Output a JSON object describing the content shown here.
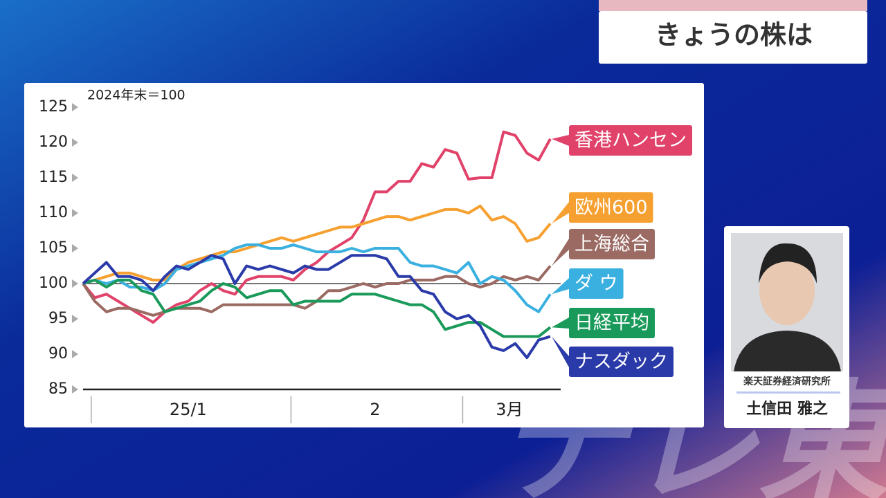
{
  "header": {
    "title": "きょうの株は"
  },
  "watermark": "テレ東",
  "commentator": {
    "organization": "楽天証券経済研究所",
    "name": "土信田 雅之"
  },
  "chart_data": {
    "type": "line",
    "subtitle": "2024年末＝100",
    "x": [
      0,
      1,
      2,
      3,
      4,
      5,
      6,
      7,
      8,
      9,
      10,
      11,
      12,
      13,
      14,
      15,
      16,
      17,
      18,
      19,
      20,
      21,
      22,
      23,
      24,
      25,
      26,
      27,
      28,
      29,
      30,
      31,
      32,
      33,
      34,
      35,
      36,
      37,
      38,
      39,
      40
    ],
    "xlim": [
      0,
      40
    ],
    "xticks": [
      {
        "value": 9,
        "label": "25/1"
      },
      {
        "value": 25,
        "label": "2"
      },
      {
        "value": 36.5,
        "label": "3月"
      }
    ],
    "x_dividers": [
      0.7,
      17.8,
      32.5
    ],
    "ylim": [
      85,
      125
    ],
    "yticks": [
      85,
      90,
      95,
      100,
      105,
      110,
      115,
      120,
      125
    ],
    "reference_line": 100,
    "series": [
      {
        "name": "香港ハンセン",
        "color": "#e0426a",
        "values": [
          100,
          98,
          98.5,
          97.5,
          96.5,
          95.5,
          94.5,
          96,
          97,
          97.5,
          99,
          100,
          99,
          98.5,
          100.5,
          101,
          101,
          101,
          100.5,
          102,
          103,
          104.5,
          105.5,
          106.5,
          109,
          113,
          113,
          114.5,
          114.5,
          117,
          116.5,
          119,
          118.5,
          114.8,
          115,
          115,
          121.5,
          121,
          118.5,
          117.5,
          120.5
        ]
      },
      {
        "name": "欧州600",
        "color": "#f5a030",
        "values": [
          100,
          100.5,
          101,
          101.5,
          101.5,
          101,
          100.5,
          100.5,
          102,
          103,
          103.5,
          104,
          104.5,
          104.5,
          105,
          105.5,
          106,
          106.5,
          106,
          106.5,
          107,
          107.5,
          108,
          108,
          108.5,
          109,
          109.5,
          109.5,
          109,
          109.5,
          110,
          110.5,
          110.5,
          110,
          111,
          109,
          109.5,
          108.5,
          106,
          106.5,
          108.5
        ]
      },
      {
        "name": "上海総合",
        "color": "#9a6a63",
        "values": [
          100,
          97.5,
          96,
          96.5,
          96.5,
          96,
          95.5,
          96,
          96.5,
          96.5,
          96.5,
          96,
          97,
          97,
          97,
          97,
          97,
          97,
          97,
          96.5,
          97.5,
          99,
          99,
          99.5,
          100,
          99.5,
          100,
          100,
          100.5,
          100.5,
          100.5,
          101,
          101,
          100,
          99.5,
          100,
          101,
          100.5,
          101,
          100.5,
          102.5
        ]
      },
      {
        "name": "ダ ウ",
        "color": "#3ab0e0",
        "values": [
          100,
          100.5,
          100,
          100.5,
          99.5,
          99.5,
          99,
          100,
          102,
          102.5,
          103,
          103.5,
          104,
          105,
          105.5,
          105.5,
          105,
          105,
          105.5,
          105,
          104.5,
          104.5,
          104.5,
          105,
          104.5,
          105,
          105,
          105,
          103,
          102.5,
          102.5,
          102,
          101.5,
          103,
          100,
          101,
          100.5,
          99,
          97,
          96,
          98.5
        ]
      },
      {
        "name": "日経平均",
        "color": "#1a9a5a",
        "values": [
          100,
          100.5,
          99.5,
          100.5,
          100.5,
          99,
          98.5,
          96,
          96.5,
          97,
          97.5,
          99,
          100,
          99.5,
          98,
          98.5,
          99,
          99,
          97,
          97.5,
          97.5,
          97.5,
          97.5,
          98.5,
          98.5,
          98.5,
          98,
          97.5,
          97,
          97,
          96,
          93.5,
          94,
          94.5,
          94.5,
          93.5,
          92.5,
          92.5,
          92.5,
          92.5,
          93.8
        ]
      },
      {
        "name": "ナスダック",
        "color": "#2a3aa8",
        "values": [
          100,
          101.5,
          103,
          101,
          101,
          100.5,
          99,
          101,
          102.5,
          102,
          103,
          104,
          103.5,
          100,
          102.5,
          102,
          102.5,
          102,
          101.5,
          102.5,
          102,
          102,
          103,
          104,
          104,
          104,
          103.5,
          101,
          101,
          99,
          98.5,
          96,
          95,
          95.5,
          94,
          91,
          90.5,
          91.5,
          89.5,
          92,
          92.5
        ]
      }
    ]
  }
}
